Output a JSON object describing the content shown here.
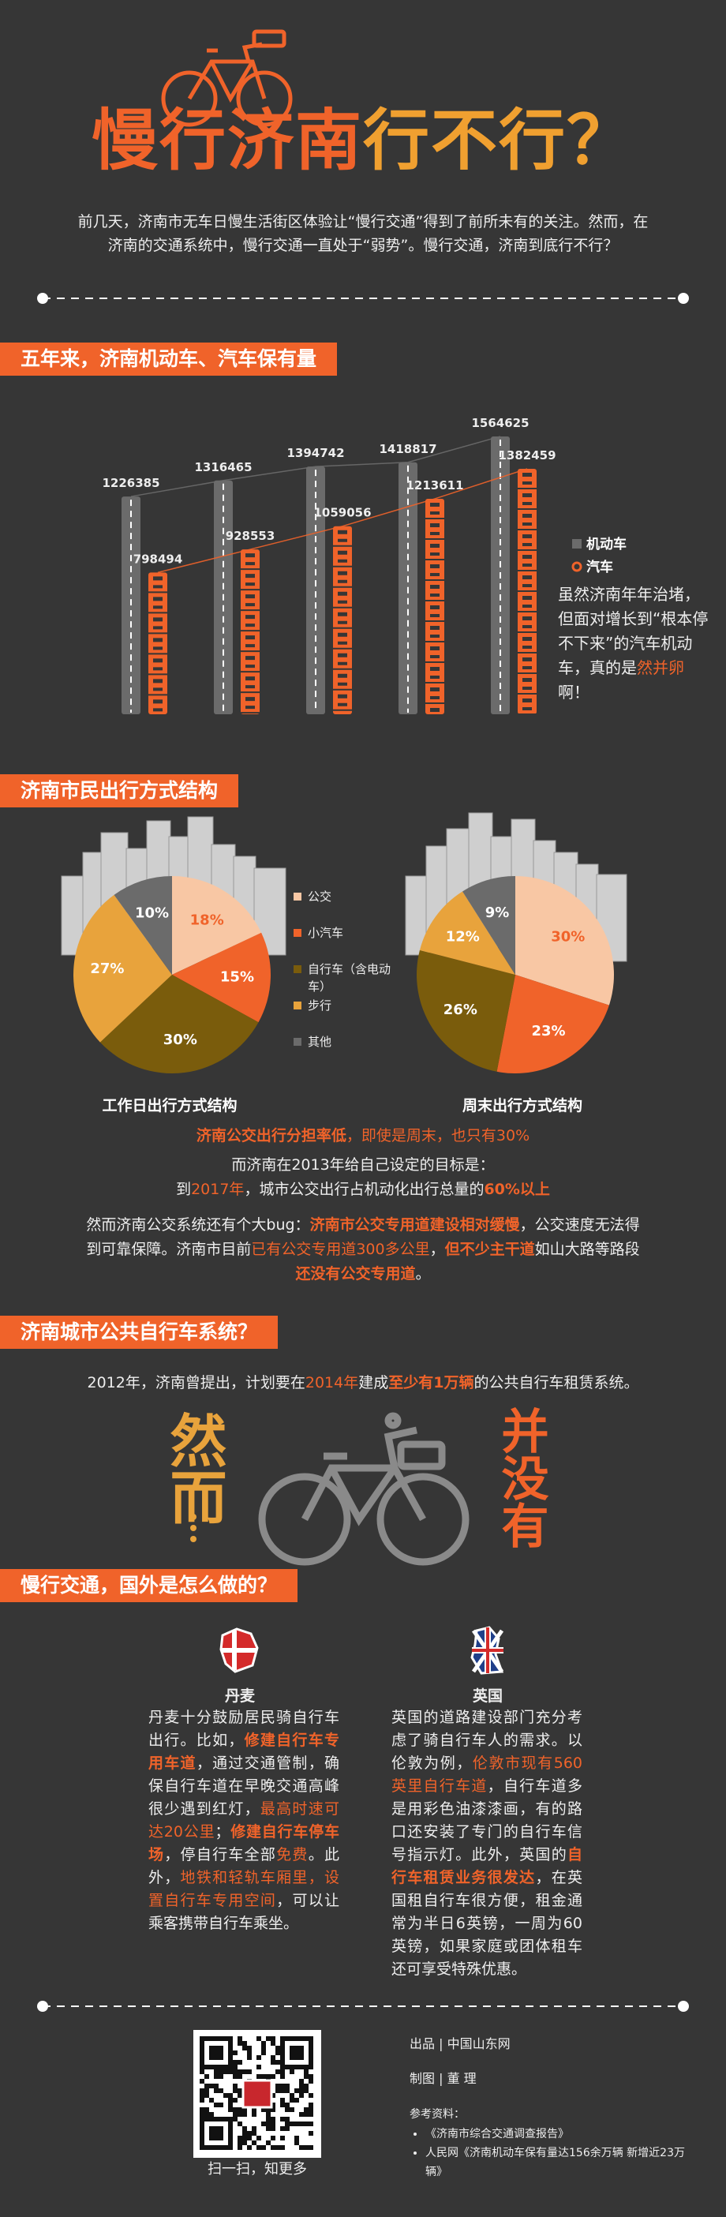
{
  "header": {
    "title": [
      {
        "text": "慢行济南",
        "color": "#f0632a"
      },
      {
        "text": "行不行？",
        "color": "#f0a030"
      }
    ],
    "intro": [
      "前几天，济南市无车日慢生活街区体验让“慢行交通”得到了前所未有的关注。然而，在济南的交通系统中，慢行交通一直处于“弱势”。慢行交通，济南到底行不行？"
    ]
  },
  "section_1": {
    "heading": "五年来，济南机动车、汽车保有量",
    "note": [
      "虽然济南年年治堵，但面对增长到“根本停不下来”的汽车机动车，真的是",
      {
        "text": "然并卵",
        "color": "#f0632a"
      },
      "啊！"
    ]
  },
  "section_2": {
    "heading": "济南市民出行方式结构",
    "paragraphs": [
      [
        {
          "text": "济南公交出行分担率低",
          "color": "#f0632a",
          "bold": true
        },
        {
          "text": "，即使是周末，也只有30%",
          "color": "#f0632a"
        }
      ],
      [
        "而济南在2013年给自己设定的目标是："
      ],
      [
        "到",
        {
          "text": "2017年",
          "color": "#f0632a"
        },
        "，城市公交出行占机动化出行总量的",
        {
          "text": "60%以上",
          "color": "#f0632a",
          "bold": true
        }
      ],
      [
        "然而济南公交系统还有个大bug：",
        {
          "text": "济南市公交专用道建设相对缓慢",
          "color": "#f0632a",
          "bold": true
        },
        "，公交速度无法得到可靠保障。济南市目前",
        {
          "text": "已有公交专用道300多公里",
          "color": "#f0632a"
        },
        "，",
        {
          "text": "但不少主干道",
          "color": "#f0632a",
          "bold": true
        },
        "如山大路等路段",
        {
          "text": "还没有公交专用道",
          "color": "#f0632a",
          "bold": true
        },
        "。"
      ]
    ]
  },
  "section_3": {
    "heading": "济南城市公共自行车系统？",
    "paragraph": [
      "2012年，济南曾提出，计划要在",
      {
        "text": "2014年",
        "color": "#f0632a"
      },
      "建成",
      {
        "text": "至少有1万辆",
        "color": "#f0632a",
        "bold": true
      },
      "的公共自行车租赁系统。"
    ],
    "left_word": "然而",
    "right_word": "并没有"
  },
  "section_4": {
    "heading": "慢行交通，国外是怎么做的？",
    "columns": [
      {
        "country": "丹麦",
        "text": [
          "丹麦十分鼓励居民骑自行车出行。比如，",
          {
            "text": "修建自行车专用车道",
            "color": "#f0632a",
            "bold": true
          },
          "，通过交通管制，确保自行车道在早晚交通高峰很少遇到红灯，",
          {
            "text": "最高时速可达20公里",
            "color": "#f0632a"
          },
          "；",
          {
            "text": "修建自行车停车场",
            "color": "#f0632a",
            "bold": true
          },
          "，停自行车全部",
          {
            "text": "免费",
            "color": "#f0632a"
          },
          "。此外，",
          {
            "text": "地铁和轻轨车厢里，设置自行车专用空间",
            "color": "#f0632a"
          },
          "，可以让乘客携带自行车乘坐。"
        ]
      },
      {
        "country": "英国",
        "text": [
          "英国的道路建设部门充分考虑了骑自行车人的需求。以伦敦为例，",
          {
            "text": "伦敦市现有560英里自行车道",
            "color": "#f0632a"
          },
          "，自行车道多是用彩色油漆漆画，有的路口还安装了专门的自行车信号指示灯。此外，英国的",
          {
            "text": "自行车租赁业务很发达",
            "color": "#f0632a",
            "bold": true
          },
          "，在英国租自行车很方便，租金通常为半日6英镑，一周为60英镑，如果家庭或团体租车还可享受特殊优惠。"
        ]
      }
    ]
  },
  "footer": {
    "qr_caption": "扫一扫，知更多",
    "credits": [
      "出品 | 中国山东网",
      "制图 | 董 理"
    ],
    "references_label": "参考资料：",
    "references": [
      "《济南市综合交通调查报告》",
      "人民网《济南机动车保有量达156余万辆 新增近23万辆》"
    ]
  },
  "chart_data": [
    {
      "type": "bar",
      "categories": [
        null,
        null,
        null,
        null,
        null
      ],
      "series": [
        {
          "name": "机动车",
          "color": "#6b6b6b",
          "values": [
            1226385,
            1316465,
            1394742,
            1418817,
            1564625
          ]
        },
        {
          "name": "汽车",
          "color": "#f0632a",
          "values": [
            798494,
            928553,
            1059056,
            1213611,
            1382459
          ]
        }
      ],
      "ylim": [
        0,
        1600000
      ],
      "legend": "right"
    },
    {
      "type": "pie",
      "title": "工作日出行方式结构",
      "categories": [
        "公交",
        "小汽车",
        "自行车（含电动车）",
        "步行",
        "其他"
      ],
      "values": [
        18,
        15,
        30,
        27,
        10
      ],
      "value_labels": [
        "18%",
        "15%",
        "30%",
        "27%",
        "10%"
      ],
      "colors": [
        "#f8c7a4",
        "#f0632a",
        "#7a5c0c",
        "#e8a33c",
        "#6b6b6b"
      ]
    },
    {
      "type": "pie",
      "title": "周末出行方式结构",
      "values": [
        30,
        23,
        26,
        12,
        9
      ],
      "value_labels": [
        "30%",
        "23%",
        "26%",
        "12%",
        "9%"
      ],
      "colors": [
        "#f8c7a4",
        "#f0632a",
        "#7a5c0c",
        "#e8a33c",
        "#6b6b6b"
      ]
    }
  ]
}
